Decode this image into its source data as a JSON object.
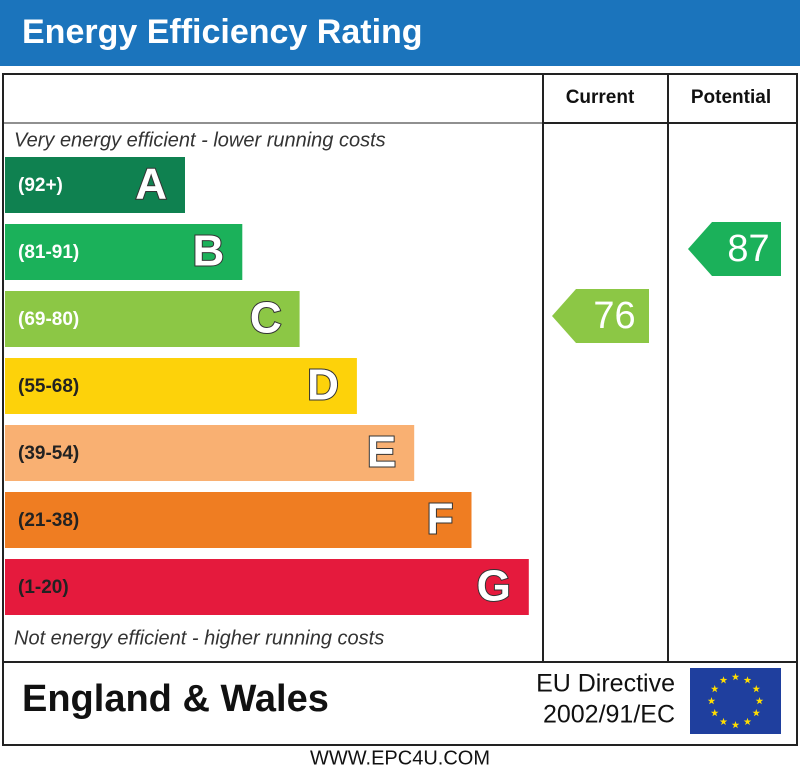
{
  "title": "Energy Efficiency Rating",
  "chart_data": {
    "type": "epc",
    "columns": [
      "Current",
      "Potential"
    ],
    "top_note": "Very energy efficient - lower running costs",
    "bottom_note": "Not energy efficient - higher running costs",
    "bands": [
      {
        "range": "(92+)",
        "letter": "A",
        "color": "#0f8150"
      },
      {
        "range": "(81-91)",
        "letter": "B",
        "color": "#1bb15a"
      },
      {
        "range": "(69-80)",
        "letter": "C",
        "color": "#8cc745"
      },
      {
        "range": "(55-68)",
        "letter": "D",
        "color": "#fdd20a"
      },
      {
        "range": "(39-54)",
        "letter": "E",
        "color": "#f9b072"
      },
      {
        "range": "(21-38)",
        "letter": "F",
        "color": "#ef7d22"
      },
      {
        "range": "(1-20)",
        "letter": "G",
        "color": "#e51a3d"
      }
    ],
    "current": {
      "value": 76
    },
    "potential": {
      "value": 87
    }
  },
  "footer": {
    "region": "England & Wales",
    "directive": [
      "EU Directive",
      "2002/91/EC"
    ],
    "website": "WWW.EPC4U.COM"
  }
}
